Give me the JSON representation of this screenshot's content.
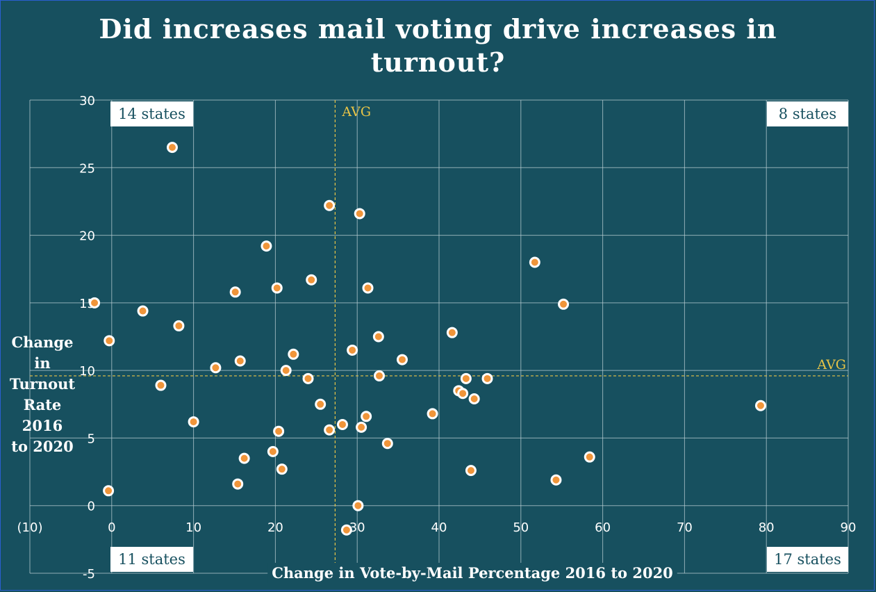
{
  "chart_data": {
    "type": "scatter",
    "title_lines": [
      "Did increases mail voting drive increases in",
      "turnout?"
    ],
    "xlabel": "Change in Vote-by-Mail Percentage 2016 to 2020",
    "ylabel_lines": [
      "Change in",
      "Turnout",
      "Rate 2016",
      "to 2020"
    ],
    "xlim": [
      -10,
      90
    ],
    "ylim": [
      -5,
      30
    ],
    "x_ticks": [
      -10,
      0,
      10,
      20,
      30,
      40,
      50,
      60,
      70,
      80,
      90
    ],
    "x_tick_labels": [
      "(10)",
      "0",
      "10",
      "20",
      "30",
      "40",
      "50",
      "60",
      "70",
      "80",
      "90"
    ],
    "y_ticks": [
      -5,
      0,
      5,
      10,
      15,
      20,
      25,
      30
    ],
    "y_tick_labels": [
      "-5",
      "0",
      "5",
      "10",
      "15",
      "20",
      "25",
      "30"
    ],
    "grid": true,
    "avg_x": 27.3,
    "avg_y": 9.6,
    "avg_label": "AVG",
    "quadrant_labels": {
      "top_left": "14 states",
      "top_right": "8 states",
      "bottom_left": "11 states",
      "bottom_right": "17 states"
    },
    "points": [
      {
        "x": -2.1,
        "y": 15.0
      },
      {
        "x": -0.3,
        "y": 12.2
      },
      {
        "x": -0.4,
        "y": 1.1
      },
      {
        "x": 3.8,
        "y": 14.4
      },
      {
        "x": 6.0,
        "y": 8.9
      },
      {
        "x": 7.4,
        "y": 26.5
      },
      {
        "x": 8.2,
        "y": 13.3
      },
      {
        "x": 10.0,
        "y": 6.2
      },
      {
        "x": 12.7,
        "y": 10.2
      },
      {
        "x": 15.1,
        "y": 15.8
      },
      {
        "x": 15.4,
        "y": 1.6
      },
      {
        "x": 15.7,
        "y": 10.7
      },
      {
        "x": 16.2,
        "y": 3.5
      },
      {
        "x": 18.9,
        "y": 19.2
      },
      {
        "x": 19.7,
        "y": 4.0
      },
      {
        "x": 20.2,
        "y": 16.1
      },
      {
        "x": 20.4,
        "y": 5.5
      },
      {
        "x": 20.8,
        "y": 2.7
      },
      {
        "x": 21.3,
        "y": 10.0
      },
      {
        "x": 22.2,
        "y": 11.2
      },
      {
        "x": 24.0,
        "y": 9.4
      },
      {
        "x": 24.4,
        "y": 16.7
      },
      {
        "x": 25.5,
        "y": 7.5
      },
      {
        "x": 26.6,
        "y": 22.2
      },
      {
        "x": 26.6,
        "y": 5.6
      },
      {
        "x": 28.2,
        "y": 6.0
      },
      {
        "x": 28.7,
        "y": -1.8
      },
      {
        "x": 29.4,
        "y": 11.5
      },
      {
        "x": 30.1,
        "y": 0.0
      },
      {
        "x": 30.3,
        "y": 21.6
      },
      {
        "x": 30.5,
        "y": 5.8
      },
      {
        "x": 31.1,
        "y": 6.6
      },
      {
        "x": 31.3,
        "y": 16.1
      },
      {
        "x": 32.6,
        "y": 12.5
      },
      {
        "x": 32.7,
        "y": 9.6
      },
      {
        "x": 33.7,
        "y": 4.6
      },
      {
        "x": 35.5,
        "y": 10.8
      },
      {
        "x": 39.2,
        "y": 6.8
      },
      {
        "x": 41.6,
        "y": 12.8
      },
      {
        "x": 42.4,
        "y": 8.5
      },
      {
        "x": 42.9,
        "y": 8.3
      },
      {
        "x": 43.3,
        "y": 9.4
      },
      {
        "x": 43.9,
        "y": 2.6
      },
      {
        "x": 44.3,
        "y": 7.9
      },
      {
        "x": 45.9,
        "y": 9.4
      },
      {
        "x": 51.7,
        "y": 18.0
      },
      {
        "x": 54.3,
        "y": 1.9
      },
      {
        "x": 55.2,
        "y": 14.9
      },
      {
        "x": 58.4,
        "y": 3.6
      },
      {
        "x": 79.3,
        "y": 7.4
      }
    ],
    "colors": {
      "background": "#17505f",
      "point_fill": "#f0953a",
      "point_stroke": "#ffffff",
      "avg_line": "#e8c447",
      "grid": "#b9ced3",
      "text": "#ffffff"
    }
  }
}
